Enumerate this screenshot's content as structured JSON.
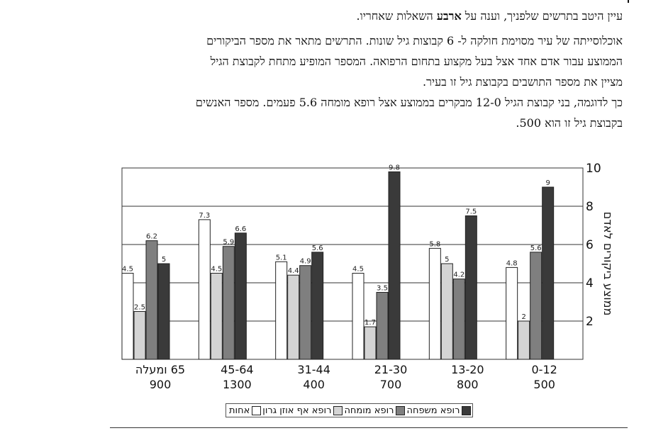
{
  "intro": {
    "line1_part1": "עיין היטב בתרשים שלפניך, וענה על ",
    "line1_bold": "ארבע",
    "line1_part2": " השאלות שאחריו.",
    "paragraph1_line1": "אוכלוסייתה של עיר מסוימת חולקה ל- 6 קבוצות גיל שונות. התרשים מתאר את מספר הביקורים",
    "paragraph1_line2": "הממוצע עבור אדם אחד אצל בעל מקצוע בתחום הרפואה. המספר המופיע מתחת לקבוצת הגיל",
    "paragraph1_line3": "מציין את מספר התושבים בקבוצת גיל זו בעיר.",
    "paragraph2_line1": "כך לדוגמה, בני קבוצת הגיל 12-0 מבקרים בממוצע אצל רופא מומחה 5.6 פעמים. מספר האנשים",
    "paragraph2_line2": "בקבוצת גיל זו הוא 500."
  },
  "chart_data": {
    "type": "bar",
    "ylabel": "ממוצע ביקורים לאדם",
    "ylim": [
      0,
      10
    ],
    "yticks": [
      2,
      4,
      6,
      8,
      10
    ],
    "grid": true,
    "legend_position": "bottom",
    "categories": [
      "65 ומעלה",
      "45-64",
      "31-44",
      "21-30",
      "13-20",
      "0-12"
    ],
    "category_populations": [
      "900",
      "1300",
      "400",
      "700",
      "800",
      "500"
    ],
    "series": [
      {
        "name": "אחות",
        "color": "#ffffff",
        "values": [
          4.5,
          7.3,
          5.1,
          4.5,
          5.8,
          4.8
        ]
      },
      {
        "name": "רופא אף אוזן גרון",
        "color": "#d4d4d4",
        "values": [
          2.5,
          4.5,
          4.4,
          1.7,
          5,
          2
        ]
      },
      {
        "name": "רופא מומחה",
        "color": "#7f7f7f",
        "values": [
          6.2,
          5.9,
          4.9,
          3.5,
          4.2,
          5.6
        ]
      },
      {
        "name": "רופא משפחה",
        "color": "#3a3a3a",
        "values": [
          5,
          6.6,
          5.6,
          9.8,
          7.5,
          9
        ]
      }
    ]
  }
}
